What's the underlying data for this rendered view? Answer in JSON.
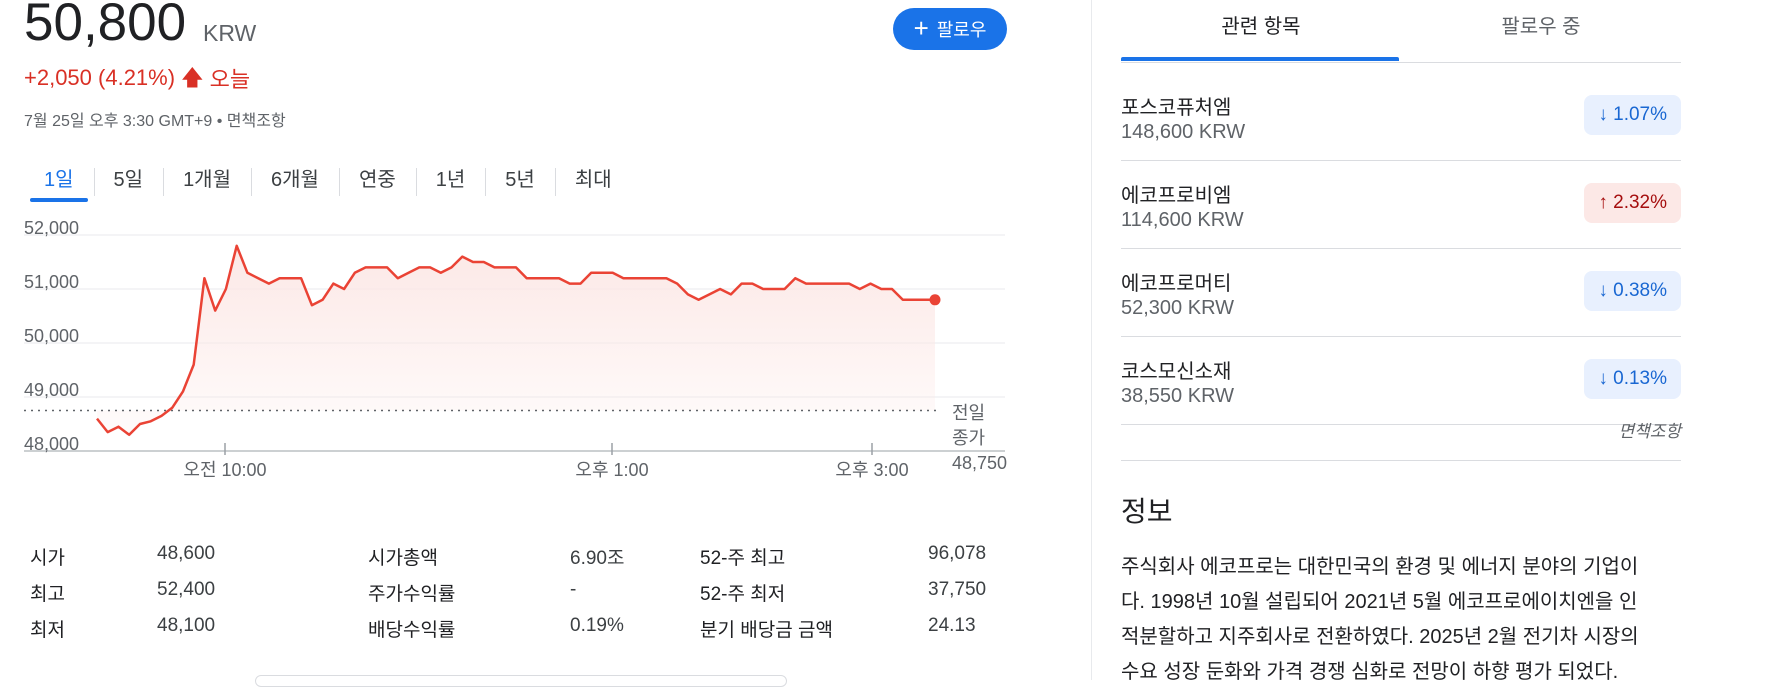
{
  "quote": {
    "price": "50,800",
    "currency": "KRW",
    "change": "+2,050 (4.21%)",
    "change_period": "오늘",
    "timestamp": "7월 25일 오후 3:30 GMT+9 • 면책조항",
    "follow_label": "팔로우"
  },
  "range_tabs": [
    "1일",
    "5일",
    "1개월",
    "6개월",
    "연중",
    "1년",
    "5년",
    "최대"
  ],
  "range_active": 0,
  "chart_data": {
    "type": "area",
    "y_ticks": [
      "52,000",
      "51,000",
      "50,000",
      "49,000",
      "48,000"
    ],
    "ylim": [
      48000,
      52000
    ],
    "x_ticks": [
      "오전 10:00",
      "오후 1:00",
      "오후 3:00"
    ],
    "prev_close_label": [
      "전일",
      "종가",
      "48,750"
    ],
    "prev_close": 48750,
    "line_color": "#ea4335",
    "fill_color": "#fce8e6",
    "values": [
      48600,
      48350,
      48450,
      48300,
      48500,
      48550,
      48650,
      48800,
      49100,
      49600,
      51200,
      50600,
      51000,
      51800,
      51300,
      51200,
      51100,
      51200,
      51200,
      51200,
      50700,
      50800,
      51100,
      51000,
      51300,
      51400,
      51400,
      51400,
      51200,
      51300,
      51400,
      51400,
      51300,
      51400,
      51600,
      51500,
      51500,
      51400,
      51400,
      51400,
      51200,
      51200,
      51200,
      51200,
      51100,
      51100,
      51300,
      51300,
      51300,
      51200,
      51200,
      51200,
      51200,
      51200,
      51100,
      50900,
      50800,
      50900,
      51000,
      50900,
      51100,
      51100,
      51000,
      51000,
      51000,
      51200,
      51100,
      51100,
      51100,
      51100,
      51100,
      51000,
      51100,
      51000,
      51000,
      50800,
      50800,
      50800,
      50800
    ]
  },
  "stats": [
    {
      "l1": "시가",
      "v1": "48,600",
      "l2": "시가총액",
      "v2": "6.90조",
      "l3": "52-주 최고",
      "v3": "96,078"
    },
    {
      "l1": "최고",
      "v1": "52,400",
      "l2": "주가수익률",
      "v2": "-",
      "l3": "52-주 최저",
      "v3": "37,750"
    },
    {
      "l1": "최저",
      "v1": "48,100",
      "l2": "배당수익률",
      "v2": "0.19%",
      "l3": "분기 배당금 금액",
      "v3": "24.13"
    }
  ],
  "right_tabs": [
    "관련 항목",
    "팔로우 중"
  ],
  "related": [
    {
      "name": "포스코퓨처엠",
      "price": "148,600 KRW",
      "change": "1.07%",
      "direction": "down"
    },
    {
      "name": "에코프로비엠",
      "price": "114,600 KRW",
      "change": "2.32%",
      "direction": "up"
    },
    {
      "name": "에코프로머티",
      "price": "52,300 KRW",
      "change": "0.38%",
      "direction": "down"
    },
    {
      "name": "코스모신소재",
      "price": "38,550 KRW",
      "change": "0.13%",
      "direction": "down"
    }
  ],
  "disclaimer": "면책조항",
  "info": {
    "title": "정보",
    "lines": [
      "주식회사 에코프로는 대한민국의 환경 및 에너지 분야의 기업이",
      "다. 1998년 10월 설립되어 2021년 5월 에코프로에이치엔을 인",
      "적분할하고 지주회사로 전환하였다. 2025년 2월 전기차 시장의",
      "수요 성장 둔화와 가격 경쟁 심화로 전망이 하향 평가 되었다."
    ]
  }
}
